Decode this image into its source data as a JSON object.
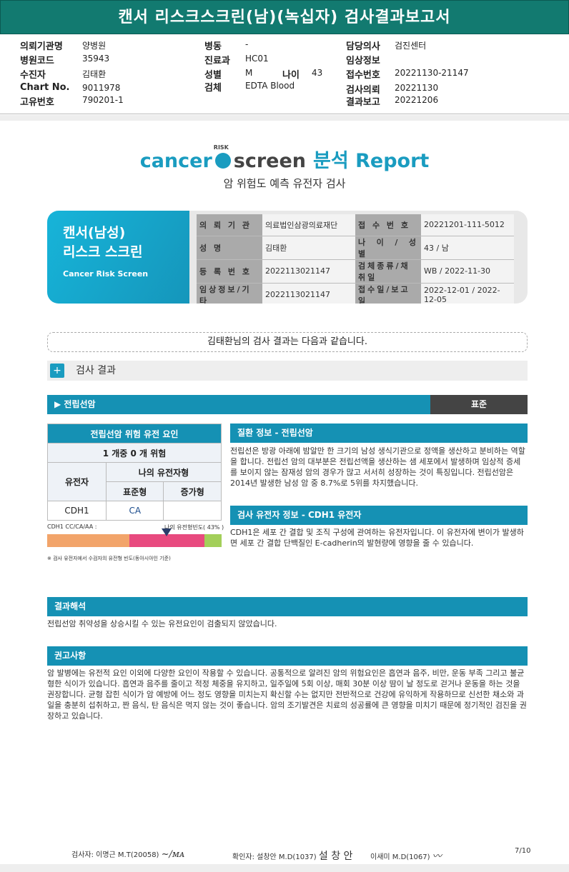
{
  "title": "캔서 리스크스크린(남)(녹십자) 검사결과보고서",
  "header": {
    "c1": [
      {
        "k": "의뢰기관명",
        "v": "양병원"
      },
      {
        "k": "병원코드",
        "v": "35943"
      },
      {
        "k": "수진자",
        "v": "김태환"
      },
      {
        "k": "Chart No.",
        "v": "9011978"
      },
      {
        "k": "고유번호",
        "v": "790201-1"
      }
    ],
    "c2": [
      {
        "k": "병동",
        "v": "-"
      },
      {
        "k": "진료과",
        "v": "HC01"
      },
      {
        "k": "성별",
        "v": "M"
      },
      {
        "k": "검체",
        "v": "EDTA Blood"
      }
    ],
    "age_label": "나이",
    "age": "43",
    "c3": [
      {
        "k": "담당의사",
        "v": "검진센터"
      },
      {
        "k": "임상정보",
        "v": ""
      },
      {
        "k": "접수번호",
        "v": "20221130-21147"
      },
      {
        "k": "검사의뢰",
        "v": "20221130"
      },
      {
        "k": "결과보고",
        "v": "20221206"
      }
    ]
  },
  "logo": {
    "cancer": "cancer",
    "risk": "RISK",
    "screen": "screen",
    "report": "분석 Report",
    "subtitle": "암 위험도 예측 유전자 검사"
  },
  "card": {
    "title1": "캔서(남성)",
    "title2": "리스크 스크린",
    "title_en": "Cancer Risk Screen",
    "rows": [
      [
        "의 뢰 기 관",
        "의료법인삼광의료재단",
        "접 수 번 호",
        "20221201-111-5012"
      ],
      [
        "성 명",
        "김태환",
        "나 이 / 성 별",
        "43 / 남"
      ],
      [
        "등 록 번 호",
        "2022113021147",
        "검체종류/채취일",
        "WB / 2022-11-30"
      ],
      [
        "임상정보/기타",
        "2022113021147",
        "접수일/보고일",
        "2022-12-01 / 2022-12-05"
      ]
    ]
  },
  "result_msg": "김태환님의 검사 결과는 다음과 같습니다.",
  "section_title": "검사 결과",
  "cancer": {
    "name": "▶ 전립선암",
    "status": "표준",
    "table": {
      "title": "전립선암 위험 유전 요인",
      "summary": "1 개중 0 개 위험",
      "gene_h": "유전자",
      "genotype_h": "나의 유전자형",
      "std_h": "표준형",
      "inc_h": "증가형",
      "gene": "CDH1",
      "std": "CA",
      "inc": ""
    },
    "freq_label": "CDH1 CC/CA/AA :",
    "my_freq": "나의 유전형빈도( 43% )",
    "freq_pct": 43,
    "freq_segments": [
      {
        "pct": 47,
        "color": "#f2a46a"
      },
      {
        "pct": 43,
        "color": "#e84a7f"
      },
      {
        "pct": 10,
        "color": "#a3cf5a"
      }
    ],
    "note": "※ 검사 유전자에서 수검자의 유전형 빈도(동아시아인 기준)",
    "disease_h": "질환 정보 - 전립선암",
    "disease_text": "전립선은 방광 아래에 밤알만 한 크기의 남성 생식기관으로 정액을 생산하고 분비하는 역할을 합니다. 전립선 암의 대부분은 전립선액을 생산하는 샘 세포에서 발생하며 임상적 증세를 보이지 않는 잠재성 암의 경우가 많고 서서히 성장하는 것이 특징입니다. 전립선암은 2014년 발생한 남성 암 중 8.7%로 5위를 차지했습니다.",
    "gene_h": "검사 유전자 정보 - CDH1 유전자",
    "gene_text": "CDH1은 세포 간 결합 및 조직 구성에 관여하는 유전자입니다. 이 유전자에 변이가 발생하면 세포 간 결합 단백질인 E-cadherin의 발현량에 영향을 줄 수 있습니다."
  },
  "interp": {
    "h": "결과해석",
    "text": "전립선암 취약성을 상승시킬 수 있는 유전요인이 검출되지 않았습니다."
  },
  "advice": {
    "h": "권고사항",
    "text": "암 발병에는 유전적 요인 이외에 다양한 요인이 작용할 수 있습니다. 공통적으로 알려진 암의 위험요인은 흡연과 음주, 비만, 운동 부족 그리고 불균형한 식이가 있습니다. 흡연과 음주를 줄이고 적정 체중을 유지하고, 일주일에 5회 이상, 매회 30분 이상 땀이 날 정도로 걷거나 운동을 하는 것을 권장합니다. 균형 잡힌 식이가 암 예방에 어느 정도 영향을 미치는지 확신할 수는 없지만 전반적으로 건강에 유익하게 작용하므로 신선한 채소와 과일을 충분히 섭취하고, 짠 음식, 탄 음식은 먹지 않는 것이 좋습니다. 암의 조기발견은 치료의 성공률에 큰 영향을 미치기 때문에 정기적인 검진을 권장하고 있습니다."
  },
  "footer": {
    "examiner": "검사자: 이명근 M.T(20058)",
    "examiner_sig": "이명근",
    "confirmer": "확인자: 설창안 M.D(1037)",
    "confirmer_sig": "설 창 안",
    "doctor2": "이새미 M.D(1067)",
    "doctor2_sig": "이새미",
    "page": "7/10"
  }
}
